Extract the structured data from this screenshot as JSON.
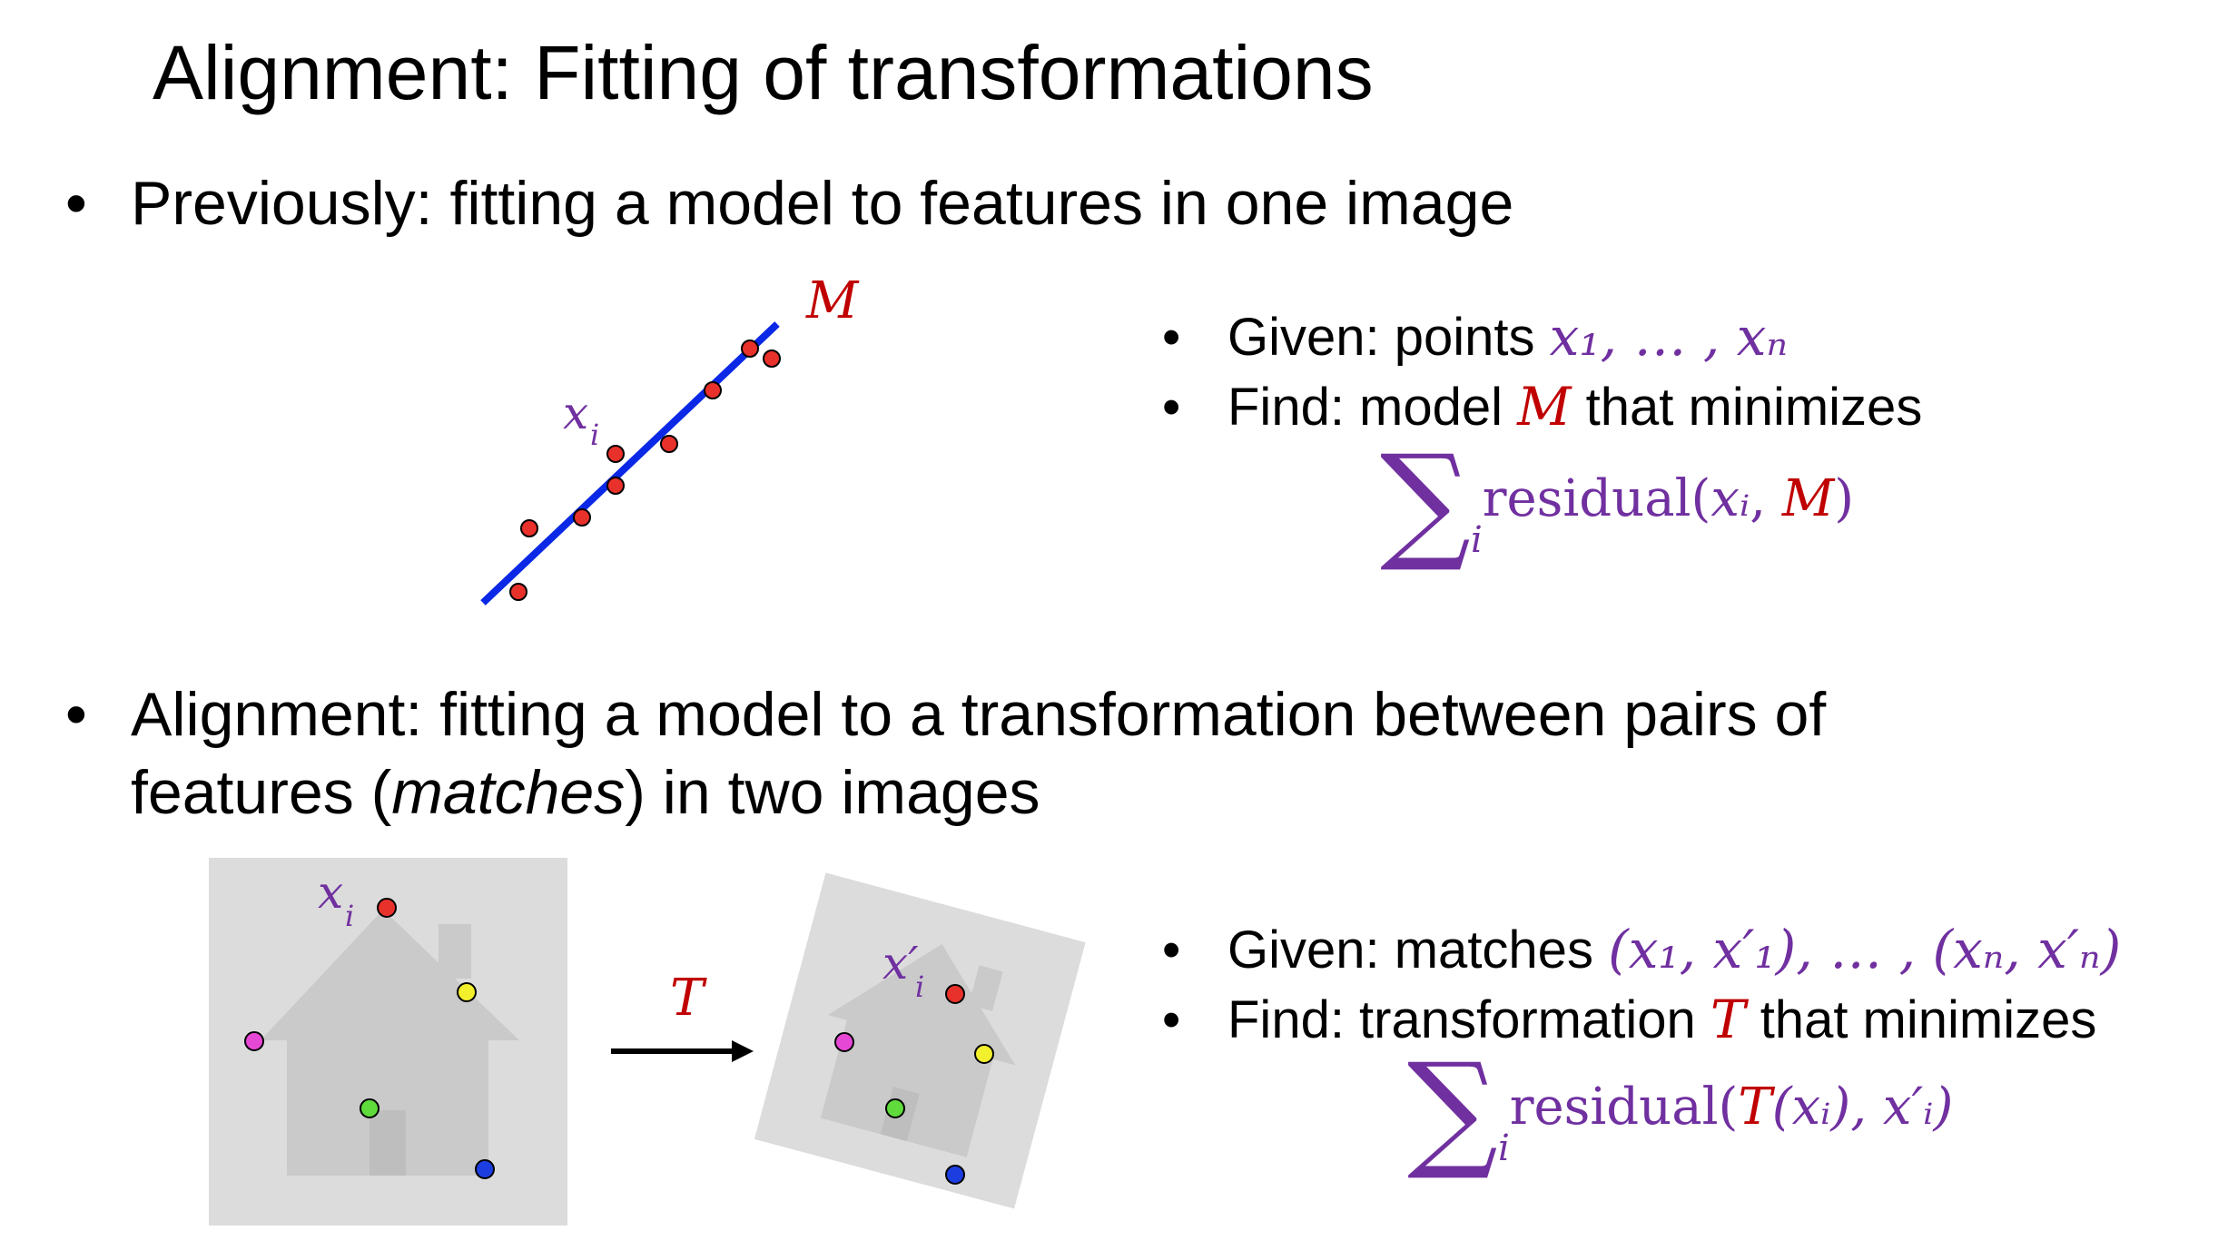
{
  "title": "Alignment: Fitting of transformations",
  "bullet1": "Previously: fitting a model to features in one image",
  "bullet2_line1": "Alignment: fitting a model to a transformation between pairs of",
  "bullet2_line2_pre": "features (",
  "bullet2_line2_em": "matches",
  "bullet2_line2_post": ") in two images",
  "fit": {
    "model_label": "M",
    "point_label": "x",
    "point_sub": "i",
    "given_prefix": "Given: points ",
    "given_math": "x₁, … , xₙ",
    "find_prefix": "Find: model ",
    "find_var": "M",
    "find_suffix": " that minimizes",
    "sum_symbol": "∑",
    "sum_index": "i",
    "residual_prefix": "residual(",
    "residual_x": "xᵢ",
    "residual_comma": ", ",
    "residual_m": "M",
    "residual_close": ")"
  },
  "align": {
    "xi_label": "x",
    "xi_sub": "i",
    "xpi_label": "x′",
    "xpi_sub": "i",
    "transform_label": "T",
    "given_prefix": "Given: matches ",
    "given_math": "(x₁, x′₁), … , (xₙ, x′ₙ)",
    "find_prefix": "Find: transformation ",
    "find_var": "T",
    "find_suffix": " that minimizes",
    "sum_symbol": "∑",
    "sum_index": "i",
    "residual_prefix": "residual(",
    "residual_t": "T",
    "residual_mid": "(xᵢ), x′ᵢ)"
  },
  "colors": {
    "accent_purple": "#7030a0",
    "accent_red": "#c00000",
    "line_blue": "#0a28e6",
    "point_red": "#e8312a",
    "point_yellow": "#f2ef2c",
    "point_magenta": "#e648d6",
    "point_green": "#5fdc3c",
    "point_blue": "#1c3ee0",
    "image_bg": "#dcdcdc",
    "house": "#cacaca"
  },
  "bullet_char": "•"
}
